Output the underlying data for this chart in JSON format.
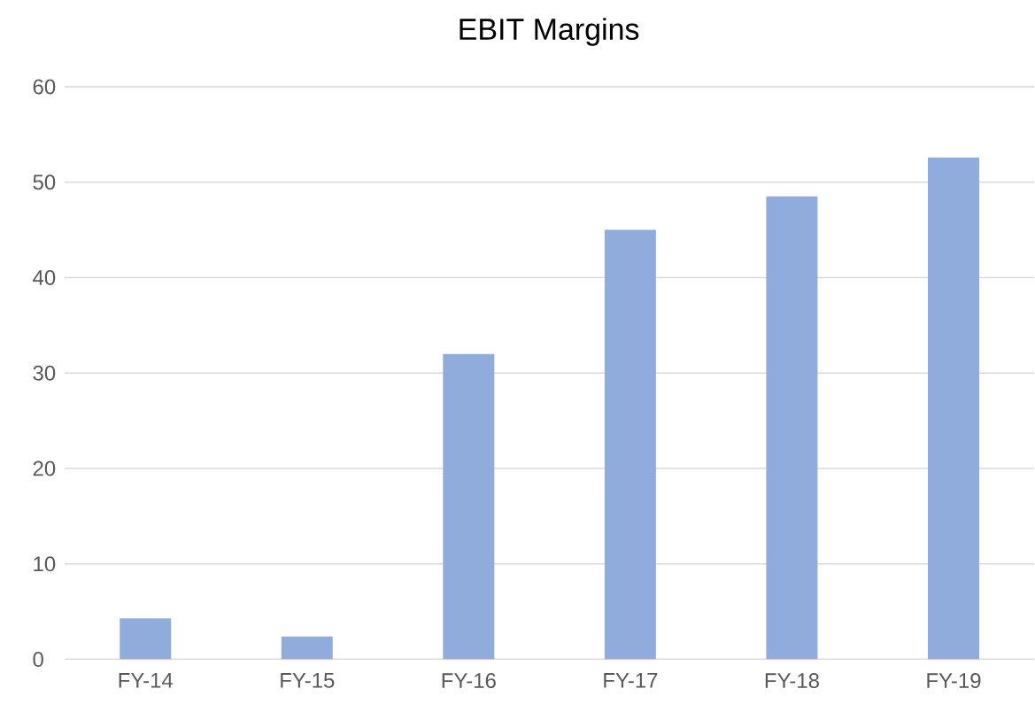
{
  "chart_data": {
    "type": "bar",
    "title": "EBIT Margins",
    "categories": [
      "FY-14",
      "FY-15",
      "FY-16",
      "FY-17",
      "FY-18",
      "FY-19"
    ],
    "values": [
      4.3,
      2.4,
      32.0,
      45.0,
      48.5,
      52.6
    ],
    "color": "#8facdc",
    "ylim": [
      0,
      60
    ],
    "yticks": [
      0,
      10,
      20,
      30,
      40,
      50,
      60
    ],
    "grid": "y"
  }
}
